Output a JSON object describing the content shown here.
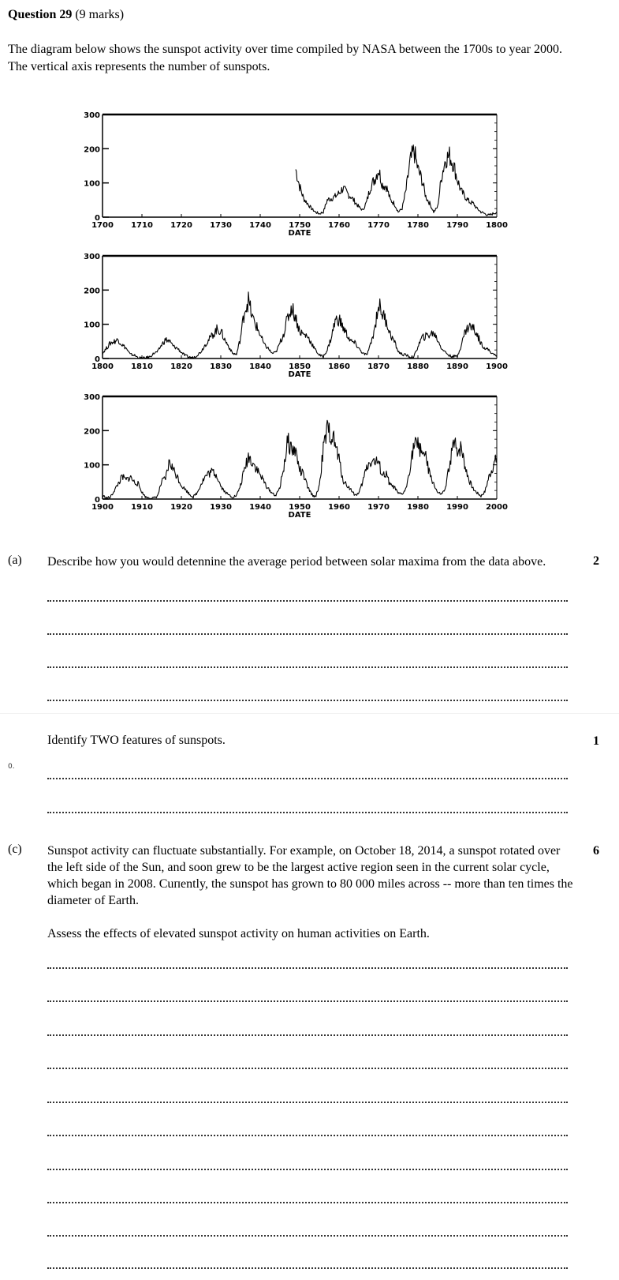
{
  "question": {
    "number_label": "Question 29",
    "marks_label": "(9 marks)",
    "intro": "The diagram below shows the sunspot activity over time compiled by NASA between the 1700s to year 2000.  The vertical axis represents the number of sunspots."
  },
  "chart_data": [
    {
      "type": "line",
      "xlabel": "DATE",
      "ylabel": "",
      "xlim": [
        1700,
        1800
      ],
      "ylim": [
        0,
        300
      ],
      "x_ticks": [
        "1700",
        "1710",
        "1720",
        "1730",
        "1740",
        "1750",
        "1760",
        "1770",
        "1780",
        "1790",
        "1800"
      ],
      "y_ticks": [
        "300",
        "200",
        "100",
        "0"
      ],
      "series": [
        {
          "x": [
            1749,
            1750,
            1751,
            1752,
            1753,
            1754,
            1755,
            1756,
            1757,
            1758,
            1759,
            1760,
            1761,
            1762,
            1763,
            1764,
            1765,
            1766,
            1767,
            1768,
            1769,
            1770,
            1771,
            1772,
            1773,
            1774,
            1775,
            1776,
            1777,
            1778,
            1779,
            1780,
            1781,
            1782,
            1783,
            1784,
            1785,
            1786,
            1787,
            1788,
            1789,
            1790,
            1791,
            1792,
            1793,
            1794,
            1795,
            1796,
            1797,
            1798,
            1799,
            1800
          ],
          "y": [
            140,
            90,
            55,
            40,
            25,
            15,
            10,
            15,
            50,
            55,
            60,
            70,
            85,
            70,
            60,
            45,
            30,
            20,
            45,
            90,
            110,
            140,
            95,
            90,
            50,
            40,
            15,
            25,
            80,
            160,
            195,
            140,
            110,
            60,
            40,
            15,
            30,
            120,
            170,
            180,
            155,
            110,
            75,
            60,
            45,
            40,
            25,
            15,
            10,
            5,
            10,
            15
          ]
        }
      ]
    },
    {
      "type": "line",
      "xlabel": "DATE",
      "ylabel": "",
      "xlim": [
        1800,
        1900
      ],
      "ylim": [
        0,
        300
      ],
      "x_ticks": [
        "1800",
        "1810",
        "1820",
        "1830",
        "1840",
        "1850",
        "1860",
        "1870",
        "1880",
        "1890",
        "1900"
      ],
      "y_ticks": [
        "300",
        "200",
        "100",
        "0"
      ],
      "series": [
        {
          "x": [
            1800,
            1801,
            1802,
            1803,
            1804,
            1805,
            1806,
            1807,
            1808,
            1809,
            1810,
            1811,
            1812,
            1813,
            1814,
            1815,
            1816,
            1817,
            1818,
            1819,
            1820,
            1821,
            1822,
            1823,
            1824,
            1825,
            1826,
            1827,
            1828,
            1829,
            1830,
            1831,
            1832,
            1833,
            1834,
            1835,
            1836,
            1837,
            1838,
            1839,
            1840,
            1841,
            1842,
            1843,
            1844,
            1845,
            1846,
            1847,
            1848,
            1849,
            1850,
            1851,
            1852,
            1853,
            1854,
            1855,
            1856,
            1857,
            1858,
            1859,
            1860,
            1861,
            1862,
            1863,
            1864,
            1865,
            1866,
            1867,
            1868,
            1869,
            1870,
            1871,
            1872,
            1873,
            1874,
            1875,
            1876,
            1877,
            1878,
            1879,
            1880,
            1881,
            1882,
            1883,
            1884,
            1885,
            1886,
            1887,
            1888,
            1889,
            1890,
            1891,
            1892,
            1893,
            1894,
            1895,
            1896,
            1897,
            1898,
            1899,
            1900
          ],
          "y": [
            15,
            30,
            45,
            50,
            55,
            40,
            30,
            12,
            10,
            3,
            0,
            2,
            5,
            15,
            20,
            40,
            55,
            50,
            35,
            30,
            18,
            8,
            4,
            2,
            10,
            20,
            40,
            55,
            70,
            85,
            80,
            55,
            35,
            15,
            12,
            60,
            140,
            170,
            120,
            95,
            70,
            40,
            30,
            15,
            18,
            45,
            75,
            120,
            150,
            120,
            80,
            70,
            65,
            45,
            25,
            10,
            5,
            25,
            60,
            110,
            115,
            90,
            70,
            50,
            45,
            30,
            15,
            10,
            40,
            85,
            160,
            130,
            110,
            70,
            50,
            20,
            12,
            10,
            4,
            5,
            35,
            60,
            65,
            70,
            75,
            55,
            30,
            18,
            8,
            6,
            6,
            40,
            80,
            95,
            90,
            70,
            45,
            30,
            25,
            12,
            10
          ]
        }
      ]
    },
    {
      "type": "line",
      "xlabel": "DATE",
      "ylabel": "",
      "xlim": [
        1900,
        2000
      ],
      "ylim": [
        0,
        300
      ],
      "x_ticks": [
        "1900",
        "1910",
        "1920",
        "1930",
        "1940",
        "1950",
        "1960",
        "1970",
        "1980",
        "1990",
        "2000"
      ],
      "y_ticks": [
        "300",
        "200",
        "100",
        "0"
      ],
      "series": [
        {
          "x": [
            1900,
            1901,
            1902,
            1903,
            1904,
            1905,
            1906,
            1907,
            1908,
            1909,
            1910,
            1911,
            1912,
            1913,
            1914,
            1915,
            1916,
            1917,
            1918,
            1919,
            1920,
            1921,
            1922,
            1923,
            1924,
            1925,
            1926,
            1927,
            1928,
            1929,
            1930,
            1931,
            1932,
            1933,
            1934,
            1935,
            1936,
            1937,
            1938,
            1939,
            1940,
            1941,
            1942,
            1943,
            1944,
            1945,
            1946,
            1947,
            1948,
            1949,
            1950,
            1951,
            1952,
            1953,
            1954,
            1955,
            1956,
            1957,
            1958,
            1959,
            1960,
            1961,
            1962,
            1963,
            1964,
            1965,
            1966,
            1967,
            1968,
            1969,
            1970,
            1971,
            1972,
            1973,
            1974,
            1975,
            1976,
            1977,
            1978,
            1979,
            1980,
            1981,
            1982,
            1983,
            1984,
            1985,
            1986,
            1987,
            1988,
            1989,
            1990,
            1991,
            1992,
            1993,
            1994,
            1995,
            1996,
            1997,
            1998,
            1999,
            2000
          ],
          "y": [
            10,
            3,
            5,
            25,
            45,
            65,
            55,
            65,
            50,
            45,
            20,
            5,
            4,
            2,
            10,
            50,
            60,
            110,
            85,
            65,
            40,
            28,
            15,
            6,
            18,
            45,
            65,
            75,
            80,
            70,
            38,
            22,
            12,
            6,
            10,
            40,
            85,
            125,
            110,
            90,
            70,
            50,
            30,
            18,
            10,
            35,
            95,
            170,
            145,
            140,
            85,
            70,
            35,
            15,
            5,
            40,
            145,
            200,
            190,
            160,
            115,
            55,
            40,
            28,
            12,
            16,
            50,
            95,
            110,
            110,
            105,
            70,
            70,
            40,
            35,
            16,
            14,
            30,
            95,
            160,
            155,
            145,
            120,
            70,
            45,
            18,
            14,
            30,
            100,
            160,
            145,
            150,
            95,
            55,
            30,
            18,
            9,
            22,
            65,
            95,
            120
          ]
        }
      ]
    }
  ],
  "part_a": {
    "label": "(a)",
    "text": "Describe how you would detennine the average period between solar maxima from the data above.",
    "marks": "2"
  },
  "part_b": {
    "side_note": "0.",
    "text": "Identify TWO features of sunspots.",
    "marks": "1"
  },
  "part_c": {
    "label": "(c)",
    "text": "Sunspot activity can fluctuate substantially. For example, on October 18, 2014, a sunspot rotated over the left side of the Sun, and soon grew to be the largest active region seen in the current solar cycle, which began in 2008. Cuпently, the sunspot has grown to 80 000 miles across -- more than ten times the diameter of Earth.",
    "prompt": "Assess the effects of elevated sunspot activity on human activities on Earth.",
    "marks": "6"
  }
}
